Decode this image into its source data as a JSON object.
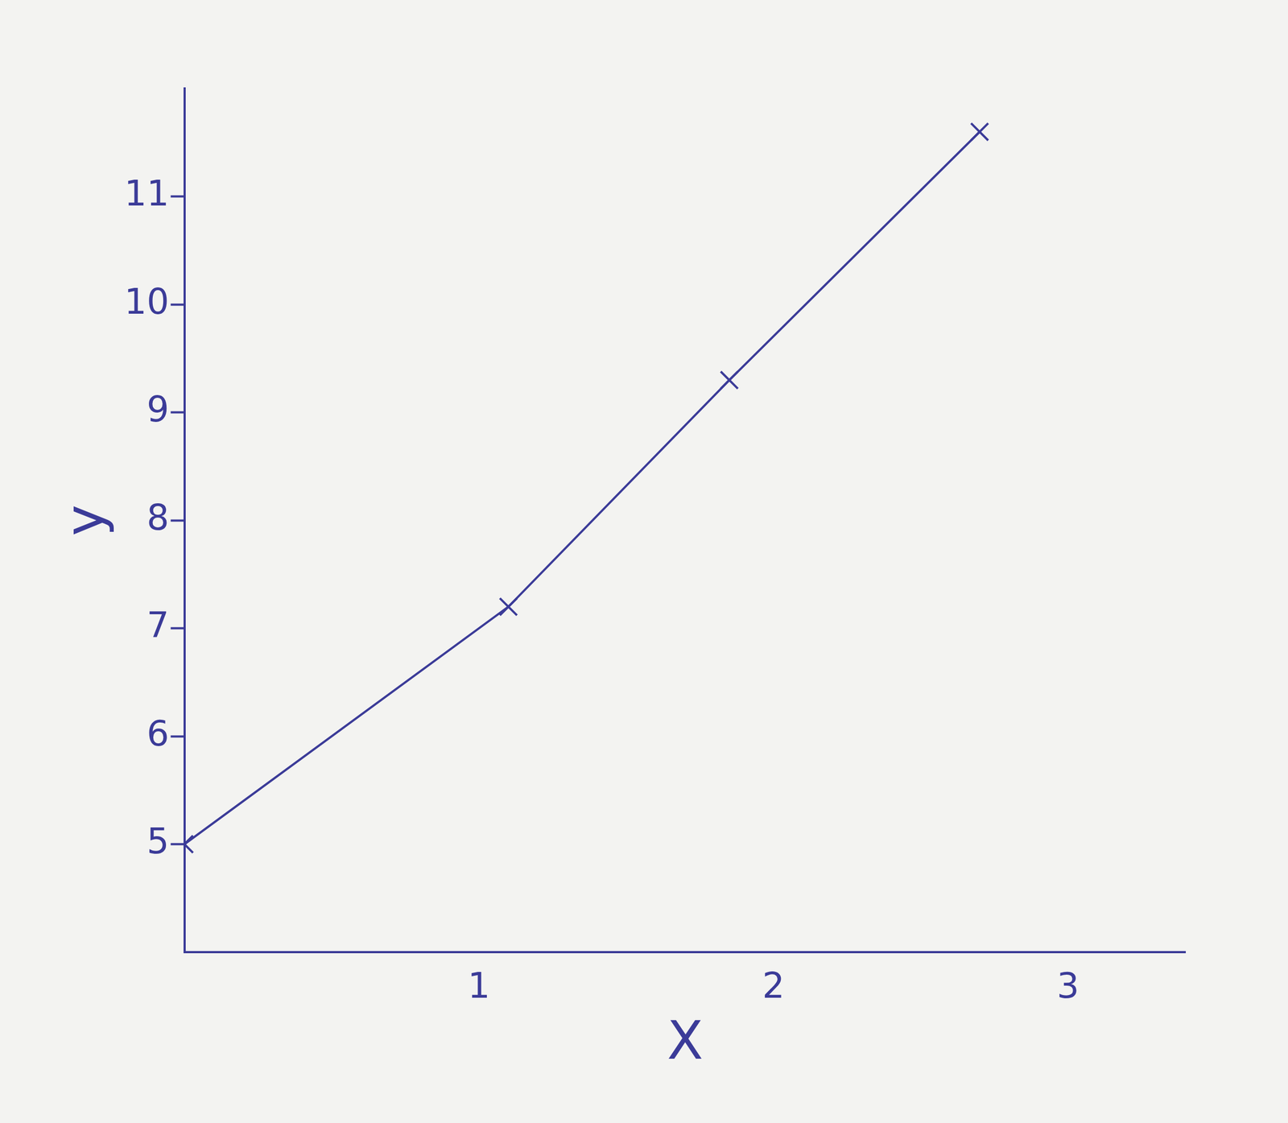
{
  "chart_data": {
    "type": "line",
    "x_label": "X",
    "y_label": "y",
    "x": [
      0,
      1.1,
      1.85,
      2.7
    ],
    "series": [
      {
        "name": "y",
        "color": "#3b3b98",
        "values": [
          5,
          7.2,
          9.3,
          11.6
        ],
        "marker": "x",
        "line_style": "solid"
      }
    ],
    "xlim": [
      0,
      3.4
    ],
    "xticks": [
      1,
      2,
      3
    ],
    "ylim": [
      4,
      12
    ],
    "yticks": [
      5,
      6,
      7,
      8,
      9,
      10,
      11
    ],
    "grid": false
  }
}
